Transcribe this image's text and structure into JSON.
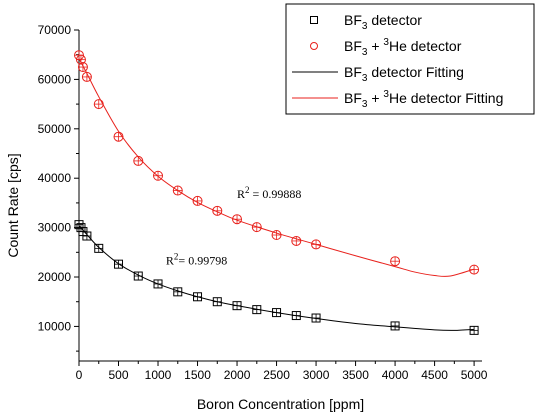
{
  "chart_data": {
    "type": "scatter",
    "xlabel": "Boron Concentration [ppm]",
    "ylabel": "Count Rate [cps]",
    "xlim": [
      0,
      5100
    ],
    "ylim": [
      3000,
      70000
    ],
    "x_ticks": [
      0,
      500,
      1000,
      1500,
      2000,
      2500,
      3000,
      3500,
      4000,
      4500,
      5000
    ],
    "y_ticks": [
      10000,
      20000,
      30000,
      40000,
      50000,
      60000,
      70000
    ],
    "legend_position": "top-right",
    "legend": [
      {
        "text": "BF",
        "sub": "3",
        "rest": " detector",
        "kind": "square",
        "color": "#000000"
      },
      {
        "text": "BF",
        "sub": "3",
        "rest": " + ",
        "sup": "3",
        "rest2": "He detector",
        "kind": "circle",
        "color": "#e8221d"
      },
      {
        "text": "BF",
        "sub": "3",
        "rest": " detector Fitting",
        "kind": "line",
        "color": "#000000"
      },
      {
        "text": "BF",
        "sub": "3",
        "rest": " + ",
        "sup": "3",
        "rest2": "He detector Fitting",
        "kind": "line",
        "color": "#e8221d"
      }
    ],
    "series": [
      {
        "name": "BF3 detector",
        "marker": "square",
        "color": "#000000",
        "points": [
          [
            0,
            30600
          ],
          [
            25,
            30000
          ],
          [
            50,
            29200
          ],
          [
            100,
            28300
          ],
          [
            250,
            25800
          ],
          [
            500,
            22600
          ],
          [
            750,
            20200
          ],
          [
            1000,
            18600
          ],
          [
            1250,
            17000
          ],
          [
            1500,
            16000
          ],
          [
            1750,
            15000
          ],
          [
            2000,
            14200
          ],
          [
            2250,
            13400
          ],
          [
            2500,
            12800
          ],
          [
            2750,
            12200
          ],
          [
            3000,
            11700
          ],
          [
            4000,
            10100
          ],
          [
            5000,
            9200
          ]
        ]
      },
      {
        "name": "BF3 + 3He detector",
        "marker": "circle",
        "color": "#e8221d",
        "points": [
          [
            0,
            64900
          ],
          [
            25,
            64000
          ],
          [
            50,
            62500
          ],
          [
            100,
            60500
          ],
          [
            250,
            55000
          ],
          [
            500,
            48400
          ],
          [
            750,
            43500
          ],
          [
            1000,
            40500
          ],
          [
            1250,
            37500
          ],
          [
            1500,
            35400
          ],
          [
            1750,
            33400
          ],
          [
            2000,
            31700
          ],
          [
            2250,
            30100
          ],
          [
            2500,
            28500
          ],
          [
            2750,
            27300
          ],
          [
            3000,
            26600
          ],
          [
            4000,
            23200
          ],
          [
            5000,
            21500
          ]
        ]
      }
    ],
    "fits": [
      {
        "name": "BF3 detector Fitting",
        "color": "#000000",
        "points": [
          [
            0,
            30400
          ],
          [
            100,
            28600
          ],
          [
            250,
            26000
          ],
          [
            500,
            22700
          ],
          [
            750,
            20400
          ],
          [
            1000,
            18600
          ],
          [
            1250,
            17200
          ],
          [
            1500,
            16000
          ],
          [
            1750,
            15000
          ],
          [
            2000,
            14200
          ],
          [
            2500,
            12800
          ],
          [
            3000,
            11600
          ],
          [
            3500,
            10600
          ],
          [
            4000,
            9900
          ],
          [
            4500,
            9300
          ],
          [
            4750,
            9200
          ],
          [
            5000,
            9400
          ]
        ]
      },
      {
        "name": "BF3 + 3He detector Fitting",
        "color": "#e8221d",
        "points": [
          [
            0,
            64200
          ],
          [
            100,
            61200
          ],
          [
            250,
            56500
          ],
          [
            500,
            49500
          ],
          [
            750,
            44300
          ],
          [
            1000,
            40400
          ],
          [
            1250,
            37500
          ],
          [
            1500,
            35100
          ],
          [
            1750,
            33200
          ],
          [
            2000,
            31500
          ],
          [
            2500,
            28900
          ],
          [
            3000,
            26600
          ],
          [
            3500,
            24300
          ],
          [
            4000,
            22100
          ],
          [
            4250,
            21000
          ],
          [
            4500,
            20300
          ],
          [
            4700,
            20200
          ],
          [
            5000,
            21600
          ]
        ]
      }
    ],
    "annotations": [
      {
        "label": "R",
        "sup": "2",
        "value": " = 0.99888",
        "x": 2000,
        "y": 36000
      },
      {
        "label": "R",
        "sup": "2",
        "value": "= 0.99798",
        "x": 1100,
        "y": 22500
      }
    ]
  }
}
